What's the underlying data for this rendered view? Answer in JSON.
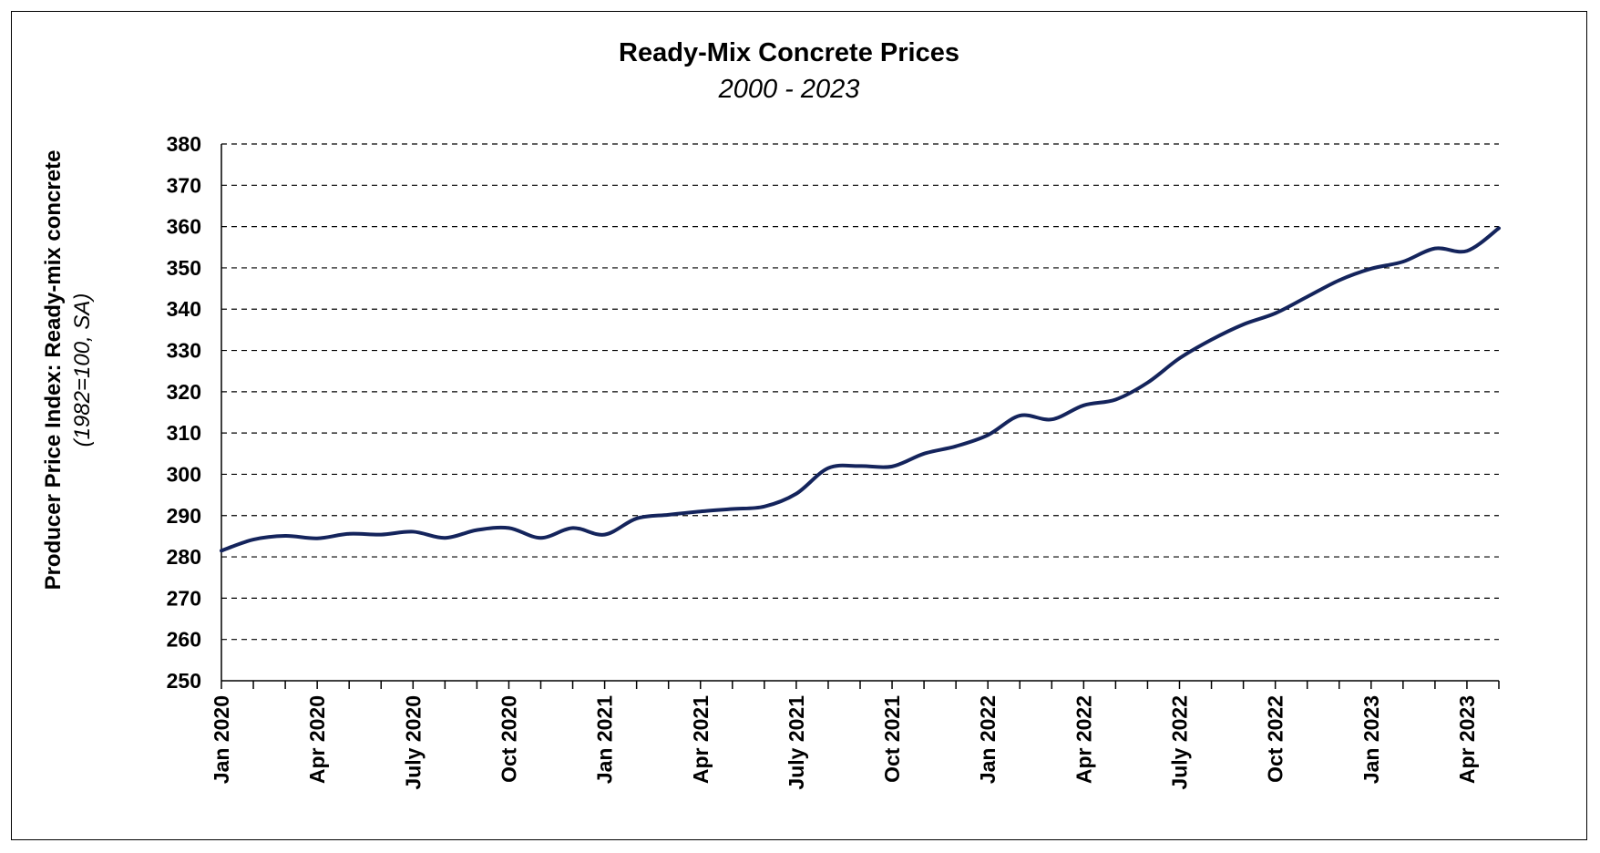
{
  "chart_data": {
    "type": "line",
    "title": "Ready-Mix Concrete Prices",
    "subtitle": "2000 - 2023",
    "ylabel": "Producer Price Index: Ready-mix concrete",
    "ylabel_sub": "(1982=100, SA)",
    "ylim": [
      250,
      380
    ],
    "yticks": [
      "250",
      "260",
      "270",
      "280",
      "290",
      "300",
      "310",
      "320",
      "330",
      "340",
      "350",
      "360",
      "370",
      "380"
    ],
    "grid": "horizontal dashed",
    "line_color": "#14245c",
    "xtick_labels": [
      "Jan 2020",
      "Apr 2020",
      "July 2020",
      "Oct 2020",
      "Jan 2021",
      "Apr 2021",
      "July 2021",
      "Oct 2021",
      "Jan 2022",
      "Apr 2022",
      "July 2022",
      "Oct 2022",
      "Jan 2023",
      "Apr 2023"
    ],
    "series": [
      {
        "x": [
          "2020-01",
          "2020-02",
          "2020-03",
          "2020-04",
          "2020-05",
          "2020-06",
          "2020-07",
          "2020-08",
          "2020-09",
          "2020-10",
          "2020-11",
          "2020-12",
          "2021-01",
          "2021-02",
          "2021-03",
          "2021-04",
          "2021-05",
          "2021-06",
          "2021-07",
          "2021-08",
          "2021-09",
          "2021-10",
          "2021-11",
          "2021-12",
          "2022-01",
          "2022-02",
          "2022-03",
          "2022-04",
          "2022-05",
          "2022-06",
          "2022-07",
          "2022-08",
          "2022-09",
          "2022-10",
          "2022-11",
          "2022-12",
          "2023-01",
          "2023-02",
          "2023-03",
          "2023-04",
          "2023-05"
        ],
        "values": [
          281.5,
          284.2,
          285.1,
          284.5,
          285.6,
          285.4,
          286.1,
          284.6,
          286.5,
          287.0,
          284.6,
          287.0,
          285.4,
          289.3,
          290.2,
          291.0,
          291.6,
          292.2,
          295.3,
          301.5,
          302.0,
          301.9,
          305.0,
          306.8,
          309.5,
          314.2,
          313.3,
          316.7,
          318.1,
          322.2,
          328.1,
          332.6,
          336.3,
          339.0,
          343.0,
          347.0,
          349.8,
          351.5,
          354.7,
          354.1,
          359.6
        ]
      }
    ]
  }
}
